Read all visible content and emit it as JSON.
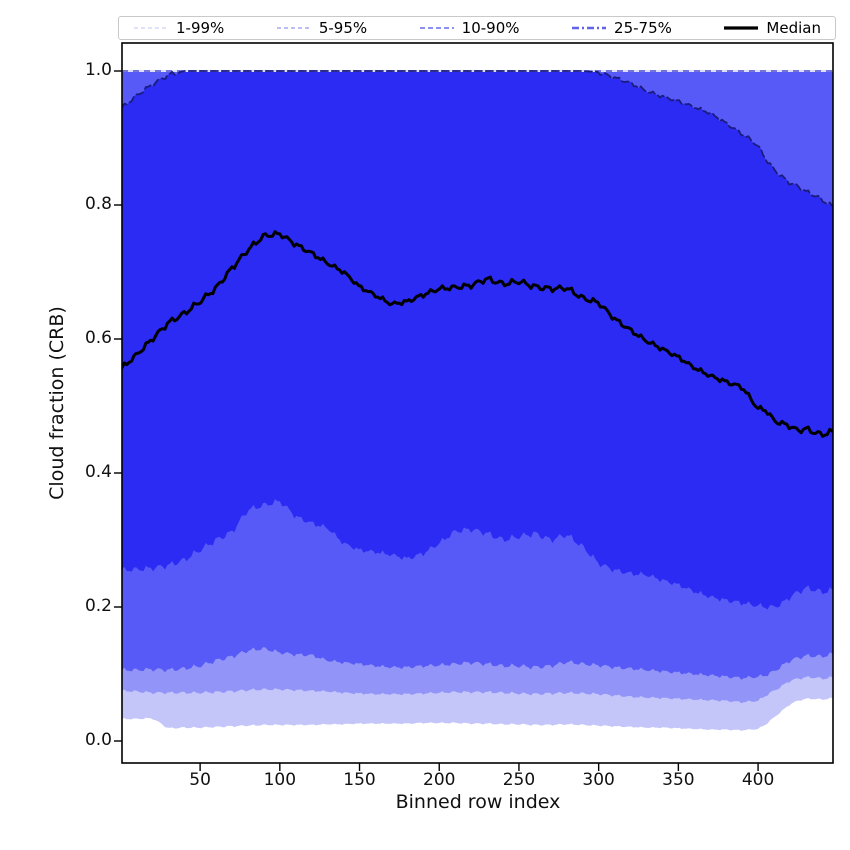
{
  "legend": {
    "items": [
      {
        "label": "1-99%",
        "color": "#cdcff6",
        "dash": "4 3",
        "width": 1.3
      },
      {
        "label": "5-95%",
        "color": "#a6a9f2",
        "dash": "4 3",
        "width": 1.5
      },
      {
        "label": "10-90%",
        "color": "#7c80ee",
        "dash": "5 3",
        "width": 1.8
      },
      {
        "label": "25-75%",
        "color": "#6164e8",
        "dash": "7 3 2 3",
        "width": 2.5
      },
      {
        "label": "Median",
        "color": "#000000",
        "dash": "",
        "width": 3.2
      }
    ]
  },
  "chart_data": {
    "type": "area",
    "title": "",
    "xlabel": "Binned row index",
    "ylabel": "Cloud fraction (CRB)",
    "xlim": [
      1,
      447
    ],
    "ylim": [
      -0.033,
      1.042
    ],
    "xticks": [
      50,
      100,
      150,
      200,
      250,
      300,
      350,
      400
    ],
    "yticks": [
      0.0,
      0.2,
      0.4,
      0.6,
      0.8,
      1.0
    ],
    "grid": false,
    "legend_position": "top",
    "x": [
      1,
      10,
      20,
      30,
      40,
      50,
      60,
      70,
      80,
      90,
      100,
      110,
      120,
      130,
      140,
      150,
      160,
      170,
      180,
      190,
      200,
      210,
      220,
      230,
      240,
      250,
      260,
      270,
      280,
      290,
      300,
      310,
      320,
      330,
      340,
      350,
      360,
      370,
      380,
      390,
      395,
      400,
      405,
      410,
      415,
      420,
      425,
      430,
      435,
      440,
      447
    ],
    "series": {
      "p1": [
        0.033,
        0.033,
        0.034,
        0.019,
        0.02,
        0.02,
        0.021,
        0.022,
        0.023,
        0.024,
        0.024,
        0.024,
        0.024,
        0.025,
        0.025,
        0.026,
        0.026,
        0.026,
        0.026,
        0.027,
        0.027,
        0.027,
        0.026,
        0.026,
        0.025,
        0.025,
        0.024,
        0.024,
        0.025,
        0.024,
        0.023,
        0.022,
        0.021,
        0.02,
        0.02,
        0.019,
        0.018,
        0.017,
        0.017,
        0.016,
        0.017,
        0.018,
        0.025,
        0.035,
        0.045,
        0.055,
        0.06,
        0.063,
        0.063,
        0.062,
        0.064
      ],
      "p5": [
        0.075,
        0.074,
        0.072,
        0.072,
        0.072,
        0.072,
        0.073,
        0.074,
        0.076,
        0.077,
        0.077,
        0.076,
        0.075,
        0.074,
        0.072,
        0.071,
        0.07,
        0.07,
        0.07,
        0.071,
        0.072,
        0.073,
        0.073,
        0.073,
        0.072,
        0.071,
        0.07,
        0.071,
        0.072,
        0.071,
        0.07,
        0.068,
        0.066,
        0.065,
        0.064,
        0.063,
        0.062,
        0.061,
        0.06,
        0.058,
        0.059,
        0.06,
        0.068,
        0.075,
        0.082,
        0.09,
        0.093,
        0.095,
        0.095,
        0.093,
        0.095
      ],
      "p10": [
        0.106,
        0.106,
        0.107,
        0.106,
        0.108,
        0.112,
        0.12,
        0.126,
        0.135,
        0.138,
        0.132,
        0.129,
        0.128,
        0.12,
        0.117,
        0.115,
        0.112,
        0.11,
        0.11,
        0.112,
        0.113,
        0.115,
        0.117,
        0.115,
        0.112,
        0.112,
        0.11,
        0.112,
        0.118,
        0.115,
        0.113,
        0.11,
        0.108,
        0.106,
        0.104,
        0.102,
        0.1,
        0.098,
        0.096,
        0.094,
        0.095,
        0.096,
        0.098,
        0.104,
        0.112,
        0.12,
        0.124,
        0.127,
        0.127,
        0.126,
        0.13
      ],
      "p25": [
        0.255,
        0.256,
        0.258,
        0.262,
        0.27,
        0.285,
        0.3,
        0.312,
        0.345,
        0.352,
        0.358,
        0.335,
        0.325,
        0.318,
        0.295,
        0.285,
        0.282,
        0.278,
        0.272,
        0.28,
        0.295,
        0.313,
        0.316,
        0.31,
        0.3,
        0.305,
        0.31,
        0.3,
        0.308,
        0.29,
        0.265,
        0.255,
        0.25,
        0.248,
        0.24,
        0.233,
        0.223,
        0.215,
        0.21,
        0.206,
        0.204,
        0.202,
        0.2,
        0.2,
        0.205,
        0.215,
        0.222,
        0.228,
        0.226,
        0.222,
        0.225
      ],
      "median": [
        0.557,
        0.576,
        0.6,
        0.624,
        0.638,
        0.656,
        0.676,
        0.706,
        0.733,
        0.754,
        0.757,
        0.741,
        0.728,
        0.713,
        0.7,
        0.678,
        0.665,
        0.652,
        0.656,
        0.666,
        0.675,
        0.677,
        0.68,
        0.69,
        0.682,
        0.686,
        0.678,
        0.675,
        0.676,
        0.661,
        0.654,
        0.63,
        0.613,
        0.597,
        0.585,
        0.573,
        0.557,
        0.545,
        0.536,
        0.528,
        0.512,
        0.496,
        0.494,
        0.478,
        0.474,
        0.47,
        0.463,
        0.466,
        0.461,
        0.457,
        0.462
      ],
      "p75": [
        0.945,
        0.963,
        0.98,
        0.994,
        1.0,
        1.0,
        1.0,
        1.0,
        1.0,
        1.0,
        1.0,
        1.0,
        1.0,
        1.0,
        1.0,
        1.0,
        1.0,
        1.0,
        1.0,
        1.0,
        1.0,
        1.0,
        1.0,
        1.0,
        1.0,
        1.0,
        1.0,
        1.0,
        1.0,
        1.0,
        0.998,
        0.99,
        0.982,
        0.97,
        0.962,
        0.955,
        0.946,
        0.937,
        0.922,
        0.906,
        0.898,
        0.888,
        0.868,
        0.853,
        0.842,
        0.833,
        0.828,
        0.82,
        0.815,
        0.808,
        0.797
      ],
      "p90": 1.0,
      "p95": 1.0,
      "p99": 1.0
    },
    "bands": [
      {
        "name": "1-99%",
        "lower": "p1",
        "upper": "p99",
        "fill": "#c4c6fa"
      },
      {
        "name": "5-95%",
        "lower": "p5",
        "upper": "p95",
        "fill": "#9295f7"
      },
      {
        "name": "10-90%",
        "lower": "p10",
        "upper": "p90",
        "fill": "#575af6"
      },
      {
        "name": "25-75%",
        "lower": "p25",
        "upper": "p75",
        "fill": "#2b2bf4"
      }
    ],
    "plot_lines": [
      {
        "series": "p75",
        "color": "#1b1c7e",
        "dash": "7 4",
        "width": 1.8
      },
      {
        "series": "median",
        "color": "#000000",
        "dash": "",
        "width": 3.0
      }
    ],
    "top_edge_line": {
      "value": 1.0,
      "color": "#4f51cf",
      "dash": "6 5",
      "width": 1.4,
      "underlay": "#dcdcfb"
    }
  }
}
